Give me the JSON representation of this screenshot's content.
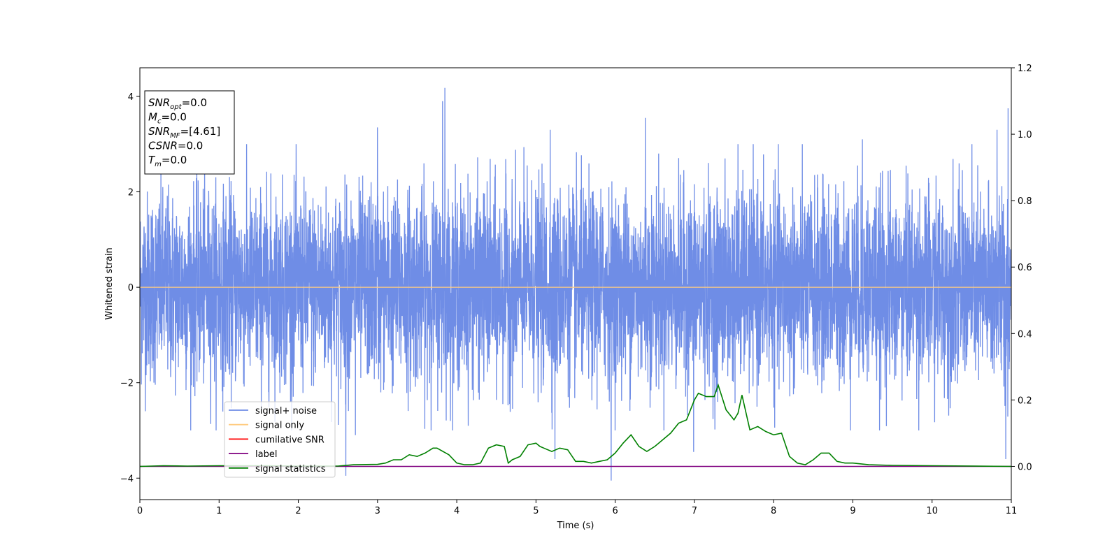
{
  "chart_data": {
    "type": "line",
    "xlabel": "Time (s)",
    "ylabel": "Whitened strain",
    "xlim": [
      0,
      11
    ],
    "ylim": [
      -4.45,
      4.6
    ],
    "y2lim": [
      -0.1,
      1.2
    ],
    "x_ticks": [
      0,
      1,
      2,
      3,
      4,
      5,
      6,
      7,
      8,
      9,
      10,
      11
    ],
    "y_ticks": [
      -4,
      -2,
      0,
      2,
      4
    ],
    "y2_ticks": [
      "0.0",
      "0.2",
      "0.4",
      "0.6",
      "0.8",
      "1.0",
      "1.2"
    ],
    "legend_placement": "lower-left",
    "grid": false,
    "info_box": {
      "lines": [
        {
          "var": "SNR",
          "sub": "opt",
          "text": "=0.0"
        },
        {
          "var": "M",
          "sub": "c",
          "text": "=0.0"
        },
        {
          "var": "SNR",
          "sub": "MF",
          "text": "=[4.61]"
        },
        {
          "var": "CSNR",
          "sub": "",
          "text": "=0.0"
        },
        {
          "var": "T",
          "sub": "m",
          "text": "=0.0"
        }
      ]
    },
    "noise": {
      "typical_amplitude": 1.8,
      "spikes": [
        {
          "x": 3.85,
          "y": 4.18
        },
        {
          "x": 3.82,
          "y": 3.9
        },
        {
          "x": 6.38,
          "y": 3.55
        },
        {
          "x": 10.96,
          "y": 3.75
        },
        {
          "x": 3.0,
          "y": 3.35
        },
        {
          "x": 5.18,
          "y": 3.3
        },
        {
          "x": 10.82,
          "y": 3.3
        },
        {
          "x": 7.55,
          "y": 3.0
        },
        {
          "x": 9.12,
          "y": 3.1
        },
        {
          "x": 5.95,
          "y": -4.05
        },
        {
          "x": 2.6,
          "y": -3.95
        },
        {
          "x": 5.24,
          "y": -3.6
        },
        {
          "x": 10.93,
          "y": -3.6
        },
        {
          "x": 6.99,
          "y": -3.45
        },
        {
          "x": 2.72,
          "y": -3.1
        }
      ]
    },
    "series": [
      {
        "name": "signal+ noise",
        "color": "#6f8de6",
        "axis": "left"
      },
      {
        "name": "signal only",
        "color": "#ffcc80",
        "axis": "left",
        "x": [
          0,
          11
        ],
        "values": [
          0,
          0
        ]
      },
      {
        "name": "cumilative SNR",
        "color": "#ff0000",
        "axis": "right",
        "x": [],
        "values": []
      },
      {
        "name": "label",
        "color": "#800080",
        "axis": "right",
        "x": [
          0,
          11
        ],
        "values": [
          0,
          0
        ]
      },
      {
        "name": "signal statistics",
        "color": "#008000",
        "axis": "right",
        "x": [
          0,
          0.3,
          0.6,
          1.0,
          1.5,
          2.0,
          2.5,
          2.7,
          3.0,
          3.1,
          3.2,
          3.3,
          3.4,
          3.5,
          3.6,
          3.7,
          3.75,
          3.9,
          4.0,
          4.1,
          4.2,
          4.3,
          4.4,
          4.5,
          4.6,
          4.65,
          4.7,
          4.8,
          4.9,
          5.0,
          5.05,
          5.1,
          5.2,
          5.3,
          5.4,
          5.5,
          5.6,
          5.7,
          5.8,
          5.9,
          6.0,
          6.1,
          6.2,
          6.3,
          6.4,
          6.5,
          6.6,
          6.7,
          6.8,
          6.9,
          7.0,
          7.05,
          7.15,
          7.25,
          7.3,
          7.4,
          7.5,
          7.55,
          7.6,
          7.7,
          7.8,
          7.9,
          8.0,
          8.1,
          8.2,
          8.3,
          8.4,
          8.5,
          8.6,
          8.7,
          8.8,
          8.9,
          9.0,
          9.2,
          9.5,
          10.0,
          11.0
        ],
        "values": [
          0.0,
          0.002,
          0.001,
          0.002,
          0.002,
          0.001,
          0.001,
          0.005,
          0.006,
          0.01,
          0.02,
          0.02,
          0.035,
          0.03,
          0.04,
          0.055,
          0.055,
          0.035,
          0.01,
          0.005,
          0.005,
          0.01,
          0.055,
          0.065,
          0.06,
          0.01,
          0.02,
          0.03,
          0.065,
          0.07,
          0.06,
          0.055,
          0.045,
          0.055,
          0.05,
          0.015,
          0.015,
          0.01,
          0.015,
          0.02,
          0.04,
          0.07,
          0.095,
          0.06,
          0.045,
          0.06,
          0.08,
          0.1,
          0.13,
          0.14,
          0.2,
          0.22,
          0.21,
          0.21,
          0.245,
          0.17,
          0.14,
          0.16,
          0.215,
          0.11,
          0.12,
          0.105,
          0.095,
          0.1,
          0.03,
          0.01,
          0.005,
          0.02,
          0.04,
          0.04,
          0.015,
          0.01,
          0.01,
          0.005,
          0.003,
          0.002,
          0.0
        ]
      }
    ]
  }
}
